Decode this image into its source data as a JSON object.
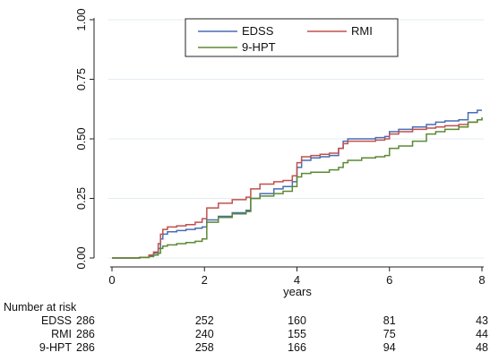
{
  "chart_data": {
    "type": "line",
    "title": "",
    "xlabel": "years",
    "ylabel": "",
    "xlim": [
      0,
      8
    ],
    "ylim": [
      0,
      1
    ],
    "x_ticks": [
      "0",
      "2",
      "4",
      "6",
      "8"
    ],
    "y_ticks": [
      "0.00",
      "0.25",
      "0.50",
      "0.75",
      "1.00"
    ],
    "grid": true,
    "legend": {
      "placement": "top-center",
      "entries": [
        "EDSS",
        "RMI",
        "9-HPT"
      ]
    },
    "series": [
      {
        "name": "EDSS",
        "color": "#4a6cb3",
        "x": [
          0,
          0.6,
          0.8,
          0.9,
          1.0,
          1.05,
          1.1,
          1.2,
          1.4,
          1.6,
          1.8,
          1.95,
          2.05,
          2.3,
          2.6,
          2.9,
          3.0,
          3.2,
          3.5,
          3.7,
          3.9,
          4.0,
          4.1,
          4.3,
          4.5,
          4.7,
          4.9,
          5.0,
          5.1,
          5.4,
          5.7,
          5.9,
          6.0,
          6.2,
          6.5,
          6.8,
          7.0,
          7.2,
          7.5,
          7.7,
          7.9,
          8.0
        ],
        "y": [
          0,
          0.003,
          0.01,
          0.02,
          0.04,
          0.08,
          0.1,
          0.11,
          0.115,
          0.12,
          0.125,
          0.13,
          0.16,
          0.175,
          0.19,
          0.2,
          0.25,
          0.27,
          0.29,
          0.3,
          0.32,
          0.38,
          0.41,
          0.42,
          0.425,
          0.43,
          0.46,
          0.49,
          0.5,
          0.5,
          0.505,
          0.51,
          0.53,
          0.54,
          0.55,
          0.56,
          0.57,
          0.575,
          0.58,
          0.61,
          0.62,
          0.62
        ]
      },
      {
        "name": "RMI",
        "color": "#c0504d",
        "x": [
          0,
          0.6,
          0.8,
          0.9,
          1.0,
          1.05,
          1.1,
          1.2,
          1.4,
          1.6,
          1.8,
          1.95,
          2.05,
          2.3,
          2.6,
          2.9,
          3.0,
          3.2,
          3.5,
          3.7,
          3.9,
          4.0,
          4.1,
          4.3,
          4.5,
          4.7,
          4.9,
          5.0,
          5.1,
          5.4,
          5.7,
          5.9,
          6.0,
          6.2,
          6.5,
          6.8,
          7.0,
          7.2,
          7.5,
          7.7,
          7.9,
          8.0
        ],
        "y": [
          0,
          0.003,
          0.012,
          0.025,
          0.06,
          0.1,
          0.12,
          0.13,
          0.135,
          0.14,
          0.15,
          0.165,
          0.21,
          0.23,
          0.245,
          0.255,
          0.29,
          0.31,
          0.32,
          0.325,
          0.345,
          0.4,
          0.425,
          0.43,
          0.435,
          0.44,
          0.46,
          0.48,
          0.49,
          0.49,
          0.495,
          0.5,
          0.52,
          0.53,
          0.54,
          0.545,
          0.55,
          0.555,
          0.56,
          0.57,
          0.58,
          0.585
        ]
      },
      {
        "name": "9-HPT",
        "color": "#5b8a33",
        "x": [
          0,
          0.6,
          0.8,
          0.9,
          1.0,
          1.05,
          1.1,
          1.2,
          1.4,
          1.6,
          1.8,
          1.95,
          2.05,
          2.3,
          2.6,
          2.9,
          3.0,
          3.2,
          3.5,
          3.7,
          3.9,
          4.0,
          4.1,
          4.3,
          4.5,
          4.7,
          4.9,
          5.0,
          5.1,
          5.4,
          5.7,
          5.9,
          6.0,
          6.2,
          6.5,
          6.8,
          7.0,
          7.2,
          7.5,
          7.7,
          7.9,
          8.0
        ],
        "y": [
          0,
          0.002,
          0.006,
          0.012,
          0.02,
          0.04,
          0.05,
          0.055,
          0.06,
          0.065,
          0.07,
          0.08,
          0.15,
          0.17,
          0.185,
          0.195,
          0.25,
          0.26,
          0.27,
          0.28,
          0.3,
          0.34,
          0.355,
          0.36,
          0.36,
          0.37,
          0.38,
          0.4,
          0.41,
          0.42,
          0.425,
          0.43,
          0.46,
          0.47,
          0.49,
          0.52,
          0.53,
          0.54,
          0.55,
          0.57,
          0.58,
          0.59
        ]
      }
    ]
  },
  "risk_table": {
    "title": "Number at risk",
    "rows": [
      {
        "label": "EDSS",
        "values": [
          "286",
          "252",
          "160",
          "81",
          "43"
        ]
      },
      {
        "label": "RMI",
        "values": [
          "286",
          "240",
          "155",
          "75",
          "44"
        ]
      },
      {
        "label": "9-HPT",
        "values": [
          "286",
          "258",
          "166",
          "94",
          "48"
        ]
      }
    ]
  }
}
